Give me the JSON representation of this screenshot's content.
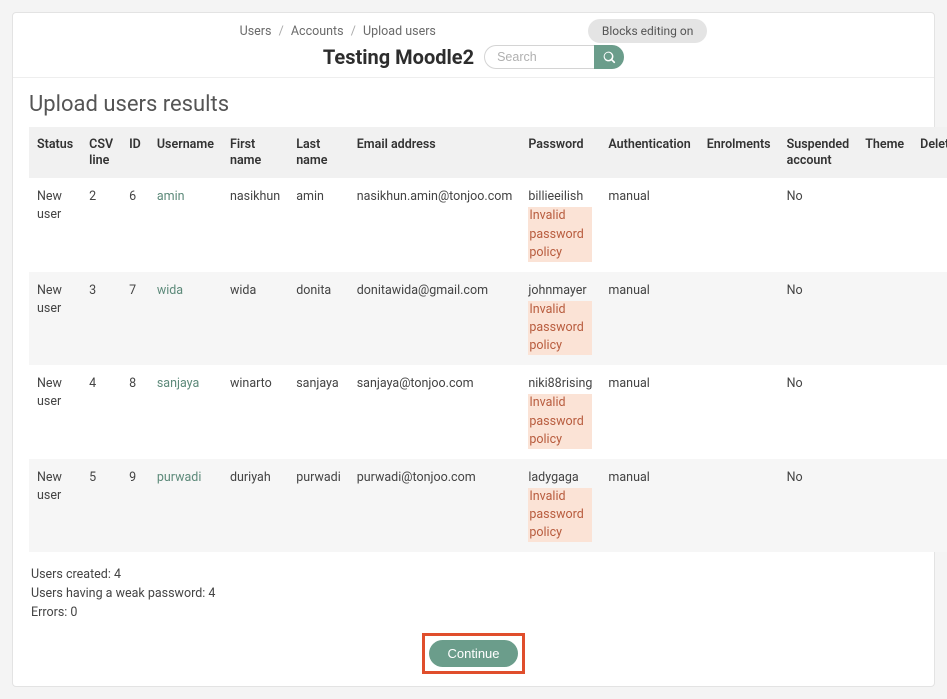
{
  "breadcrumb": {
    "a": "Users",
    "b": "Accounts",
    "c": "Upload users"
  },
  "edit_badge": "Blocks editing on",
  "site_title": "Testing Moodle2",
  "search": {
    "placeholder": "Search"
  },
  "page_heading": "Upload users results",
  "columns": {
    "status": "Status",
    "csv": "CSV line",
    "id": "ID",
    "username": "Username",
    "first": "First name",
    "last": "Last name",
    "email": "Email address",
    "password": "Password",
    "auth": "Authentication",
    "enrol": "Enrolments",
    "susp": "Suspended account",
    "theme": "Theme",
    "delete": "Delete"
  },
  "rows": [
    {
      "status": "New user",
      "csv": "2",
      "id": "6",
      "username": "amin",
      "first": "nasikhun",
      "last": "amin",
      "email": "nasikhun.amin@tonjoo.com",
      "pw": "billieeilish",
      "pw_warn": "Invalid password policy",
      "auth": "manual",
      "enrol": "",
      "susp": "No",
      "theme": "",
      "delete": ""
    },
    {
      "status": "New user",
      "csv": "3",
      "id": "7",
      "username": "wida",
      "first": "wida",
      "last": "donita",
      "email": "donitawida@gmail.com",
      "pw": "johnmayer",
      "pw_warn": "Invalid password policy",
      "auth": "manual",
      "enrol": "",
      "susp": "No",
      "theme": "",
      "delete": ""
    },
    {
      "status": "New user",
      "csv": "4",
      "id": "8",
      "username": "sanjaya",
      "first": "winarto",
      "last": "sanjaya",
      "email": "sanjaya@tonjoo.com",
      "pw": "niki88rising",
      "pw_warn": "Invalid password policy",
      "auth": "manual",
      "enrol": "",
      "susp": "No",
      "theme": "",
      "delete": ""
    },
    {
      "status": "New user",
      "csv": "5",
      "id": "9",
      "username": "purwadi",
      "first": "duriyah",
      "last": "purwadi",
      "email": "purwadi@tonjoo.com",
      "pw": "ladygaga",
      "pw_warn": "Invalid password policy",
      "auth": "manual",
      "enrol": "",
      "susp": "No",
      "theme": "",
      "delete": ""
    }
  ],
  "summary": {
    "created": "Users created: 4",
    "weak": "Users having a weak password: 4",
    "errors": "Errors: 0"
  },
  "continue_label": "Continue",
  "colors": {
    "accent": "#6b9d8b",
    "highlight_border": "#e04e2c",
    "warn_text": "#b85c3e",
    "warn_bg": "#fbe3d6"
  }
}
